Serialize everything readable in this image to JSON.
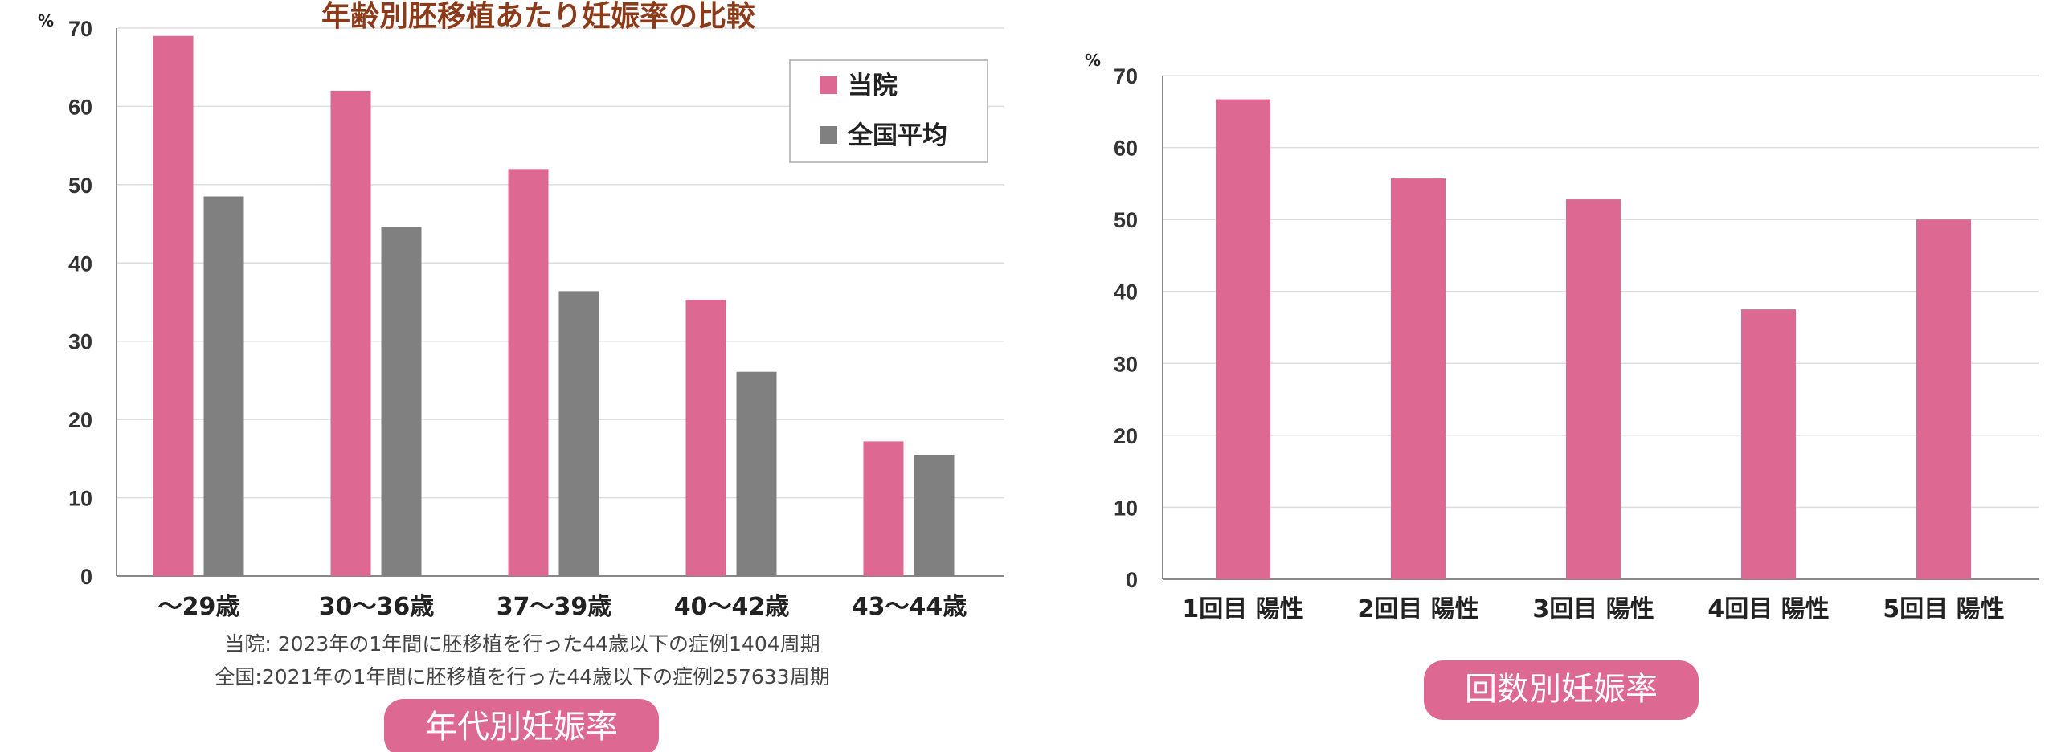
{
  "chart_data": [
    {
      "type": "bar",
      "title": "年齢別胚移植あたり妊娠率の比較",
      "ylabel": "%",
      "ylim": [
        0,
        70
      ],
      "yticks": [
        0,
        10,
        20,
        30,
        40,
        50,
        60,
        70
      ],
      "categories": [
        "～29歳",
        "30～36歳",
        "37～39歳",
        "40～42歳",
        "43～44歳"
      ],
      "series": [
        {
          "name": "当院",
          "color": "#dd6892",
          "values": [
            69,
            62,
            52,
            35.3,
            17.2
          ]
        },
        {
          "name": "全国平均",
          "color": "#808080",
          "values": [
            48.5,
            44.6,
            36.4,
            26.1,
            15.5
          ]
        }
      ],
      "legend": "top-right",
      "grid": true,
      "notes": [
        "当院: 2023年の1年間に胚移植を行った44歳以下の症例1404周期",
        "全国:2021年の1年間に胚移植を行った44歳以下の症例257633周期"
      ],
      "caption": "年代別妊娠率"
    },
    {
      "type": "bar",
      "ylabel": "%",
      "ylim": [
        0,
        70
      ],
      "yticks": [
        0,
        10,
        20,
        30,
        40,
        50,
        60,
        70
      ],
      "categories": [
        "1回目 陽性",
        "2回目 陽性",
        "3回目 陽性",
        "4回目 陽性",
        "5回目 陽性"
      ],
      "series": [
        {
          "color": "#dd6892",
          "values": [
            66.7,
            55.7,
            52.8,
            37.5,
            50
          ]
        }
      ],
      "grid": true,
      "caption": "回数別妊娠率"
    }
  ]
}
